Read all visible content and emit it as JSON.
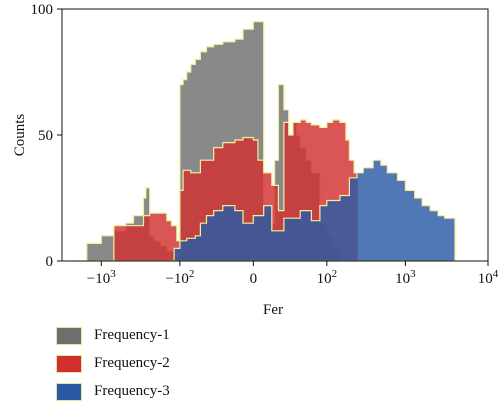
{
  "chart_data": {
    "type": "area",
    "xlabel": "Fer",
    "ylabel": "Counts",
    "x_scale": "symlog",
    "xlim": [
      -3000,
      10000
    ],
    "ylim": [
      0,
      100
    ],
    "x_ticks": [
      {
        "value": -1000,
        "label": "−10",
        "sup": "3"
      },
      {
        "value": -100,
        "label": "−10",
        "sup": "2"
      },
      {
        "value": 0,
        "label": "0",
        "sup": ""
      },
      {
        "value": 100,
        "label": "10",
        "sup": "2"
      },
      {
        "value": 1000,
        "label": "10",
        "sup": "3"
      },
      {
        "value": 10000,
        "label": "10",
        "sup": "4"
      }
    ],
    "y_ticks": [
      {
        "value": 0,
        "label": "0"
      },
      {
        "value": 50,
        "label": "50"
      },
      {
        "value": 100,
        "label": "100"
      }
    ],
    "colors": {
      "Frequency-1": "#6f6f6f",
      "Frequency-2": "#d22f2f",
      "Frequency-3": "#2a5aa6",
      "outline": "#f2ef9a"
    },
    "series": [
      {
        "name": "Frequency-1",
        "x": [
          -2500,
          -1500,
          -1000,
          -700,
          -500,
          -400,
          -300,
          -280,
          -250,
          -220,
          -180,
          -150,
          -120,
          -100,
          -90,
          -80,
          -70,
          -60,
          -50,
          -40,
          -30,
          -20,
          -10,
          -5,
          0,
          5,
          10,
          12,
          15,
          20,
          25,
          30,
          35,
          40,
          50,
          60,
          80,
          100,
          120,
          150
        ],
        "y": [
          0,
          7,
          10,
          12,
          15,
          18,
          25,
          29,
          10,
          8,
          6,
          4,
          2,
          70,
          72,
          75,
          78,
          80,
          83,
          85,
          86,
          87,
          88,
          92,
          95,
          20,
          15,
          40,
          70,
          60,
          50,
          55,
          50,
          45,
          40,
          35,
          15,
          10,
          6,
          0
        ]
      },
      {
        "name": "Frequency-2",
        "x": [
          -1200,
          -700,
          -400,
          -300,
          -250,
          -200,
          -150,
          -130,
          -110,
          -100,
          -90,
          -70,
          -50,
          -30,
          -20,
          -10,
          -5,
          0,
          2,
          5,
          10,
          15,
          20,
          25,
          30,
          40,
          50,
          60,
          80,
          100,
          120,
          150,
          180,
          200,
          230,
          260
        ],
        "y": [
          0,
          14,
          14,
          18,
          19,
          19,
          16,
          14,
          8,
          28,
          36,
          35,
          40,
          45,
          47,
          48,
          49,
          48,
          40,
          35,
          30,
          20,
          55,
          50,
          55,
          56,
          55,
          54,
          53,
          55,
          56,
          55,
          48,
          40,
          35,
          30
        ]
      },
      {
        "name": "Frequency-3",
        "x": [
          -150,
          -120,
          -100,
          -80,
          -60,
          -50,
          -40,
          -30,
          -20,
          -10,
          -5,
          0,
          5,
          10,
          20,
          40,
          60,
          80,
          100,
          150,
          200,
          250,
          300,
          400,
          500,
          600,
          800,
          1000,
          1300,
          1600,
          2000,
          2500,
          3000,
          4000
        ],
        "y": [
          0,
          5,
          8,
          9,
          10,
          15,
          18,
          20,
          22,
          20,
          15,
          18,
          22,
          12,
          17,
          20,
          16,
          22,
          24,
          26,
          33,
          35,
          37,
          40,
          38,
          35,
          32,
          28,
          25,
          22,
          20,
          18,
          17,
          0
        ]
      }
    ]
  },
  "legend": {
    "items": [
      {
        "label": "Frequency-1",
        "color": "#6f6f6f"
      },
      {
        "label": "Frequency-2",
        "color": "#d22f2f"
      },
      {
        "label": "Frequency-3",
        "color": "#2a5aa6"
      }
    ]
  }
}
